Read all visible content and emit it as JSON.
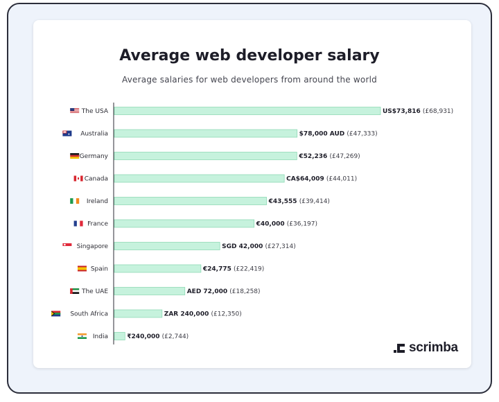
{
  "chart_data": {
    "type": "bar",
    "orientation": "horizontal",
    "title": "Average web developer salary",
    "subtitle": "Average salaries for web developers from around the world",
    "categories": [
      "The USA",
      "Australia",
      "Germany",
      "Canada",
      "Ireland",
      "France",
      "Singapore",
      "Spain",
      "The UAE",
      "South Africa",
      "India"
    ],
    "values_gbp": [
      68931,
      47333,
      47269,
      44011,
      39414,
      36197,
      27314,
      22419,
      18258,
      12350,
      2744
    ],
    "value_labels_local": [
      "US$73,816",
      "$78,000 AUD",
      "€52,236",
      "CA$64,009",
      "€43,555",
      "€40,000",
      "SGD 42,000",
      "€24,775",
      "AED 72,000",
      "ZAR 240,000",
      "₹240,000"
    ],
    "value_labels_gbp": [
      "(£68,931)",
      "(£47,333)",
      "(£47,269)",
      "(£44,011)",
      "(£39,414)",
      "(£36,197)",
      "(£27,314)",
      "(£22,419)",
      "(£18,258)",
      "(£12,350)",
      "(£2,744)"
    ],
    "flags": [
      "us-flag",
      "australia-flag",
      "germany-flag",
      "canada-flag",
      "ireland-flag",
      "france-flag",
      "singapore-flag",
      "spain-flag",
      "uae-flag",
      "south-africa-flag",
      "india-flag"
    ],
    "bar_color": "#c6f2dd",
    "bar_border_color": "#8fd9b6",
    "grid": false,
    "legend": "none"
  },
  "brand": {
    "name": "scrimba",
    "logo_icon": "scrimba-logo-icon"
  }
}
